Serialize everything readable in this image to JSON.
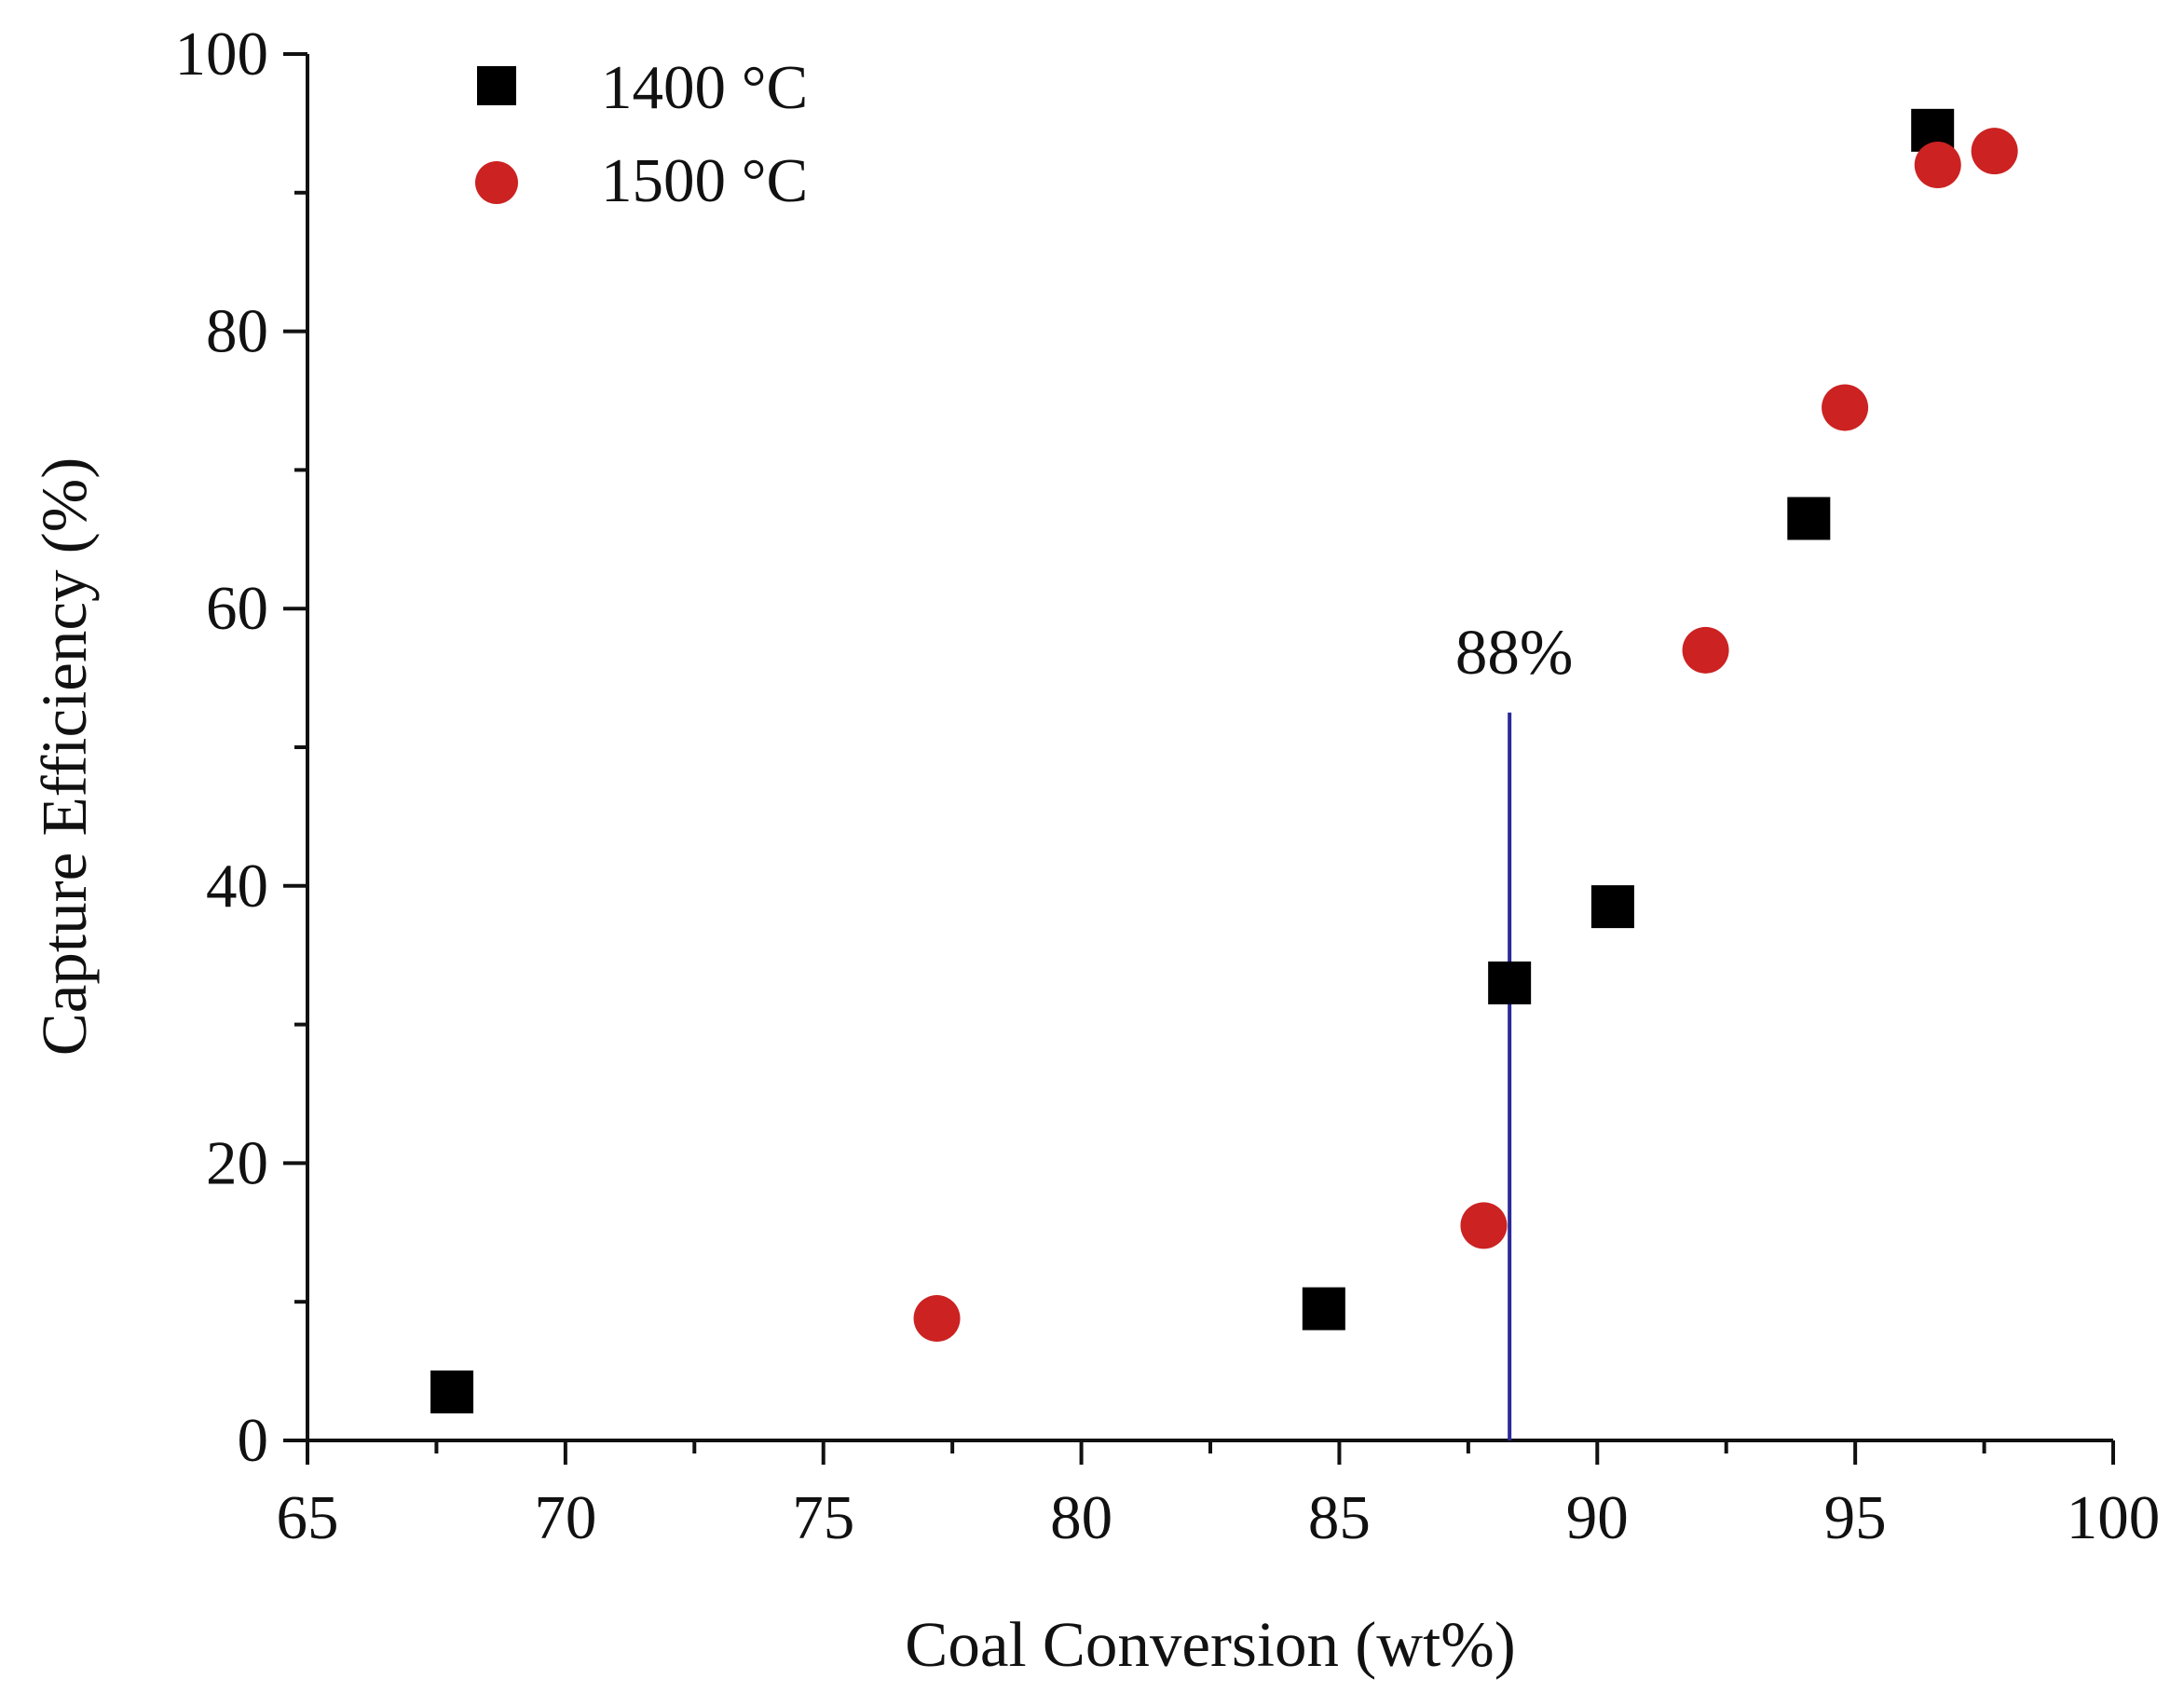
{
  "chart_data": {
    "type": "scatter",
    "xlabel": "Coal Conversion (wt%)",
    "ylabel": "Capture Efficiency (%)",
    "xlim": [
      65,
      100
    ],
    "ylim": [
      0,
      100
    ],
    "xticks": [
      65,
      70,
      75,
      80,
      85,
      90,
      95,
      100
    ],
    "yticks": [
      0,
      20,
      40,
      60,
      80,
      100
    ],
    "grid": false,
    "legend_position": "top-left",
    "series": [
      {
        "name": "1400 °C",
        "marker": "square",
        "color": "#000000",
        "x": [
          67.8,
          84.7,
          88.3,
          90.3,
          94.1,
          96.5
        ],
        "y": [
          3.5,
          9.5,
          33.0,
          38.5,
          66.5,
          94.5
        ]
      },
      {
        "name": "1500 °C",
        "marker": "circle",
        "color": "#cc2222",
        "x": [
          77.2,
          87.8,
          92.1,
          94.8,
          96.6,
          97.7
        ],
        "y": [
          8.8,
          15.5,
          57.0,
          74.5,
          92.0,
          93.0
        ]
      }
    ],
    "annotations": [
      {
        "type": "vline",
        "x": 88.3,
        "y_top": 52.5,
        "color": "#2a2a9a",
        "label": "88%"
      }
    ]
  }
}
